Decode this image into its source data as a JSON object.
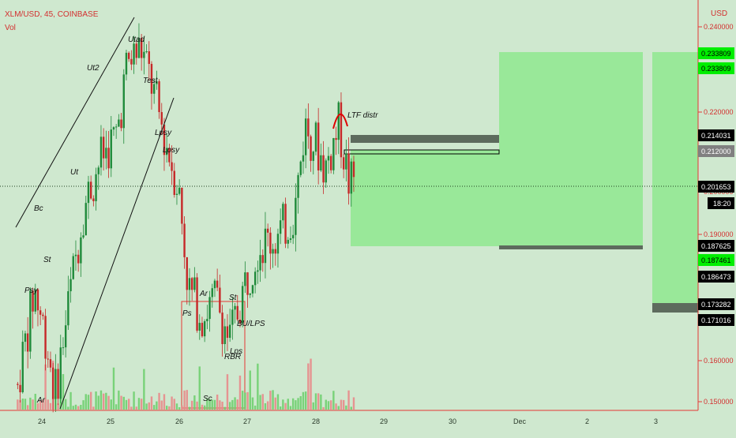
{
  "header": {
    "title": "XLM/USD, 45, COINBASE",
    "vol_label": "Vol"
  },
  "price_axis": {
    "currency": "USD",
    "ticks": [
      "0.240000",
      "0.220000",
      "0.200000",
      "0.190000",
      "0.160000",
      "0.150000"
    ],
    "badges": [
      {
        "id": "tp-top-a",
        "text": "0.233809",
        "price": 0.233809,
        "bg": "#00ee00",
        "fg": "#000000"
      },
      {
        "id": "tp-top-b",
        "text": "0.233809",
        "price": 0.233809,
        "bg": "#00ee00",
        "fg": "#000000"
      },
      {
        "id": "zone-top",
        "text": "0.214031",
        "price": 0.214031,
        "bg": "#000000",
        "fg": "#ffffff"
      },
      {
        "id": "entry",
        "text": "0.212000",
        "price": 0.212,
        "bg": "#808080",
        "fg": "#ffffff"
      },
      {
        "id": "last-price",
        "text": "0.201653",
        "price": 0.201653,
        "bg": "#000000",
        "fg": "#ffffff"
      },
      {
        "id": "countdown",
        "text": "18:20",
        "price": null,
        "bg": "#000000",
        "fg": "#ffffff"
      },
      {
        "id": "stop-a",
        "text": "0.187625",
        "price": 0.187625,
        "bg": "#000000",
        "fg": "#ffffff"
      },
      {
        "id": "stop-b",
        "text": "0.187461",
        "price": 0.187461,
        "bg": "#00ee00",
        "fg": "#000000"
      },
      {
        "id": "level-c",
        "text": "0.186473",
        "price": 0.186473,
        "bg": "#000000",
        "fg": "#ffffff"
      },
      {
        "id": "level-d",
        "text": "0.173282",
        "price": 0.173282,
        "bg": "#000000",
        "fg": "#ffffff"
      },
      {
        "id": "level-e",
        "text": "0.171016",
        "price": 0.171016,
        "bg": "#000000",
        "fg": "#ffffff"
      }
    ]
  },
  "time_axis": {
    "ticks": [
      "24",
      "25",
      "26",
      "27",
      "28",
      "29",
      "30",
      "Dec",
      "2",
      "3"
    ]
  },
  "annotations": [
    "Utad",
    "Ut2",
    "Test",
    "Lpsy",
    "Lpsy",
    "Ut",
    "Bc",
    "St",
    "Psy",
    "Ar",
    "Ar",
    "Ps",
    "St",
    "BU/LPS",
    "Lps",
    "RBR",
    "Sc",
    "LTF distr"
  ],
  "chart_data": {
    "type": "candlestick",
    "title": "XLM/USD, 45, COINBASE",
    "ylabel": "USD",
    "ylim": [
      0.148,
      0.243
    ],
    "x_days": [
      "24",
      "25",
      "26",
      "27",
      "28",
      "29",
      "30",
      "Dec",
      "2",
      "3"
    ],
    "last_price": 0.201653,
    "path_points": [
      {
        "day": 23.6,
        "price": 0.154
      },
      {
        "day": 23.85,
        "price": 0.176
      },
      {
        "day": 24.0,
        "price": 0.166
      },
      {
        "day": 24.15,
        "price": 0.152
      },
      {
        "day": 24.3,
        "price": 0.168
      },
      {
        "day": 24.55,
        "price": 0.194
      },
      {
        "day": 24.8,
        "price": 0.206
      },
      {
        "day": 25.05,
        "price": 0.212
      },
      {
        "day": 25.2,
        "price": 0.228
      },
      {
        "day": 25.4,
        "price": 0.232
      },
      {
        "day": 25.55,
        "price": 0.224
      },
      {
        "day": 25.75,
        "price": 0.211
      },
      {
        "day": 25.95,
        "price": 0.2
      },
      {
        "day": 26.1,
        "price": 0.176
      },
      {
        "day": 26.3,
        "price": 0.17
      },
      {
        "day": 26.5,
        "price": 0.174
      },
      {
        "day": 26.7,
        "price": 0.164
      },
      {
        "day": 26.9,
        "price": 0.176
      },
      {
        "day": 27.1,
        "price": 0.186
      },
      {
        "day": 27.4,
        "price": 0.188
      },
      {
        "day": 27.65,
        "price": 0.194
      },
      {
        "day": 27.8,
        "price": 0.214
      },
      {
        "day": 27.95,
        "price": 0.21
      },
      {
        "day": 28.1,
        "price": 0.204
      },
      {
        "day": 28.3,
        "price": 0.214
      },
      {
        "day": 28.45,
        "price": 0.2
      },
      {
        "day": 28.55,
        "price": 0.201653
      }
    ]
  },
  "colors": {
    "background": "#cfe8cf",
    "zone_light_green": "#8fe88f",
    "zone_dark": "#5d6b5d",
    "bull": "#1f8a3a",
    "bear": "#c62828",
    "axis_red": "#e53935",
    "wyckoff_box": "#e53935"
  }
}
